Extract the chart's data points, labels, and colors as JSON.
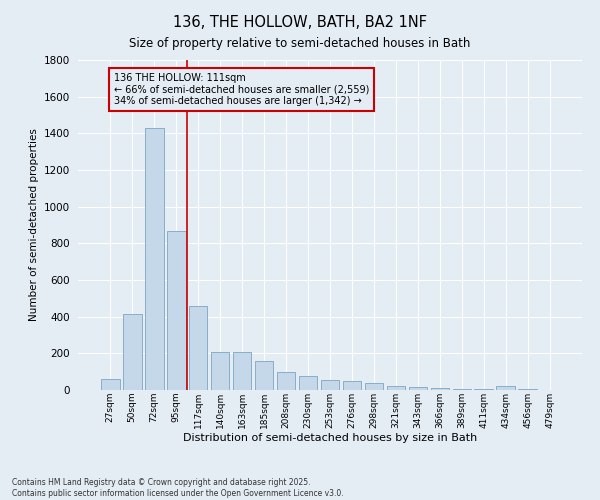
{
  "title": "136, THE HOLLOW, BATH, BA2 1NF",
  "subtitle": "Size of property relative to semi-detached houses in Bath",
  "xlabel": "Distribution of semi-detached houses by size in Bath",
  "ylabel": "Number of semi-detached properties",
  "footnote": "Contains HM Land Registry data © Crown copyright and database right 2025.\nContains public sector information licensed under the Open Government Licence v3.0.",
  "bar_color": "#c5d8ea",
  "bar_edgecolor": "#8aaec8",
  "background_color": "#e4ecf4",
  "gridcolor": "#ffffff",
  "vline_color": "#cc0000",
  "vline_x": 3.5,
  "annotation_line1": "136 THE HOLLOW: 111sqm",
  "annotation_line2": "← 66% of semi-detached houses are smaller (2,559)",
  "annotation_line3": "34% of semi-detached houses are larger (1,342) →",
  "annotation_box_color": "#cc0000",
  "categories": [
    "27sqm",
    "50sqm",
    "72sqm",
    "95sqm",
    "117sqm",
    "140sqm",
    "163sqm",
    "185sqm",
    "208sqm",
    "230sqm",
    "253sqm",
    "276sqm",
    "298sqm",
    "321sqm",
    "343sqm",
    "366sqm",
    "389sqm",
    "411sqm",
    "434sqm",
    "456sqm",
    "479sqm"
  ],
  "values": [
    60,
    415,
    1430,
    870,
    460,
    210,
    210,
    160,
    100,
    75,
    55,
    50,
    40,
    20,
    15,
    10,
    5,
    5,
    20,
    5,
    2
  ],
  "ylim": [
    0,
    1800
  ],
  "yticks": [
    0,
    200,
    400,
    600,
    800,
    1000,
    1200,
    1400,
    1600,
    1800
  ]
}
